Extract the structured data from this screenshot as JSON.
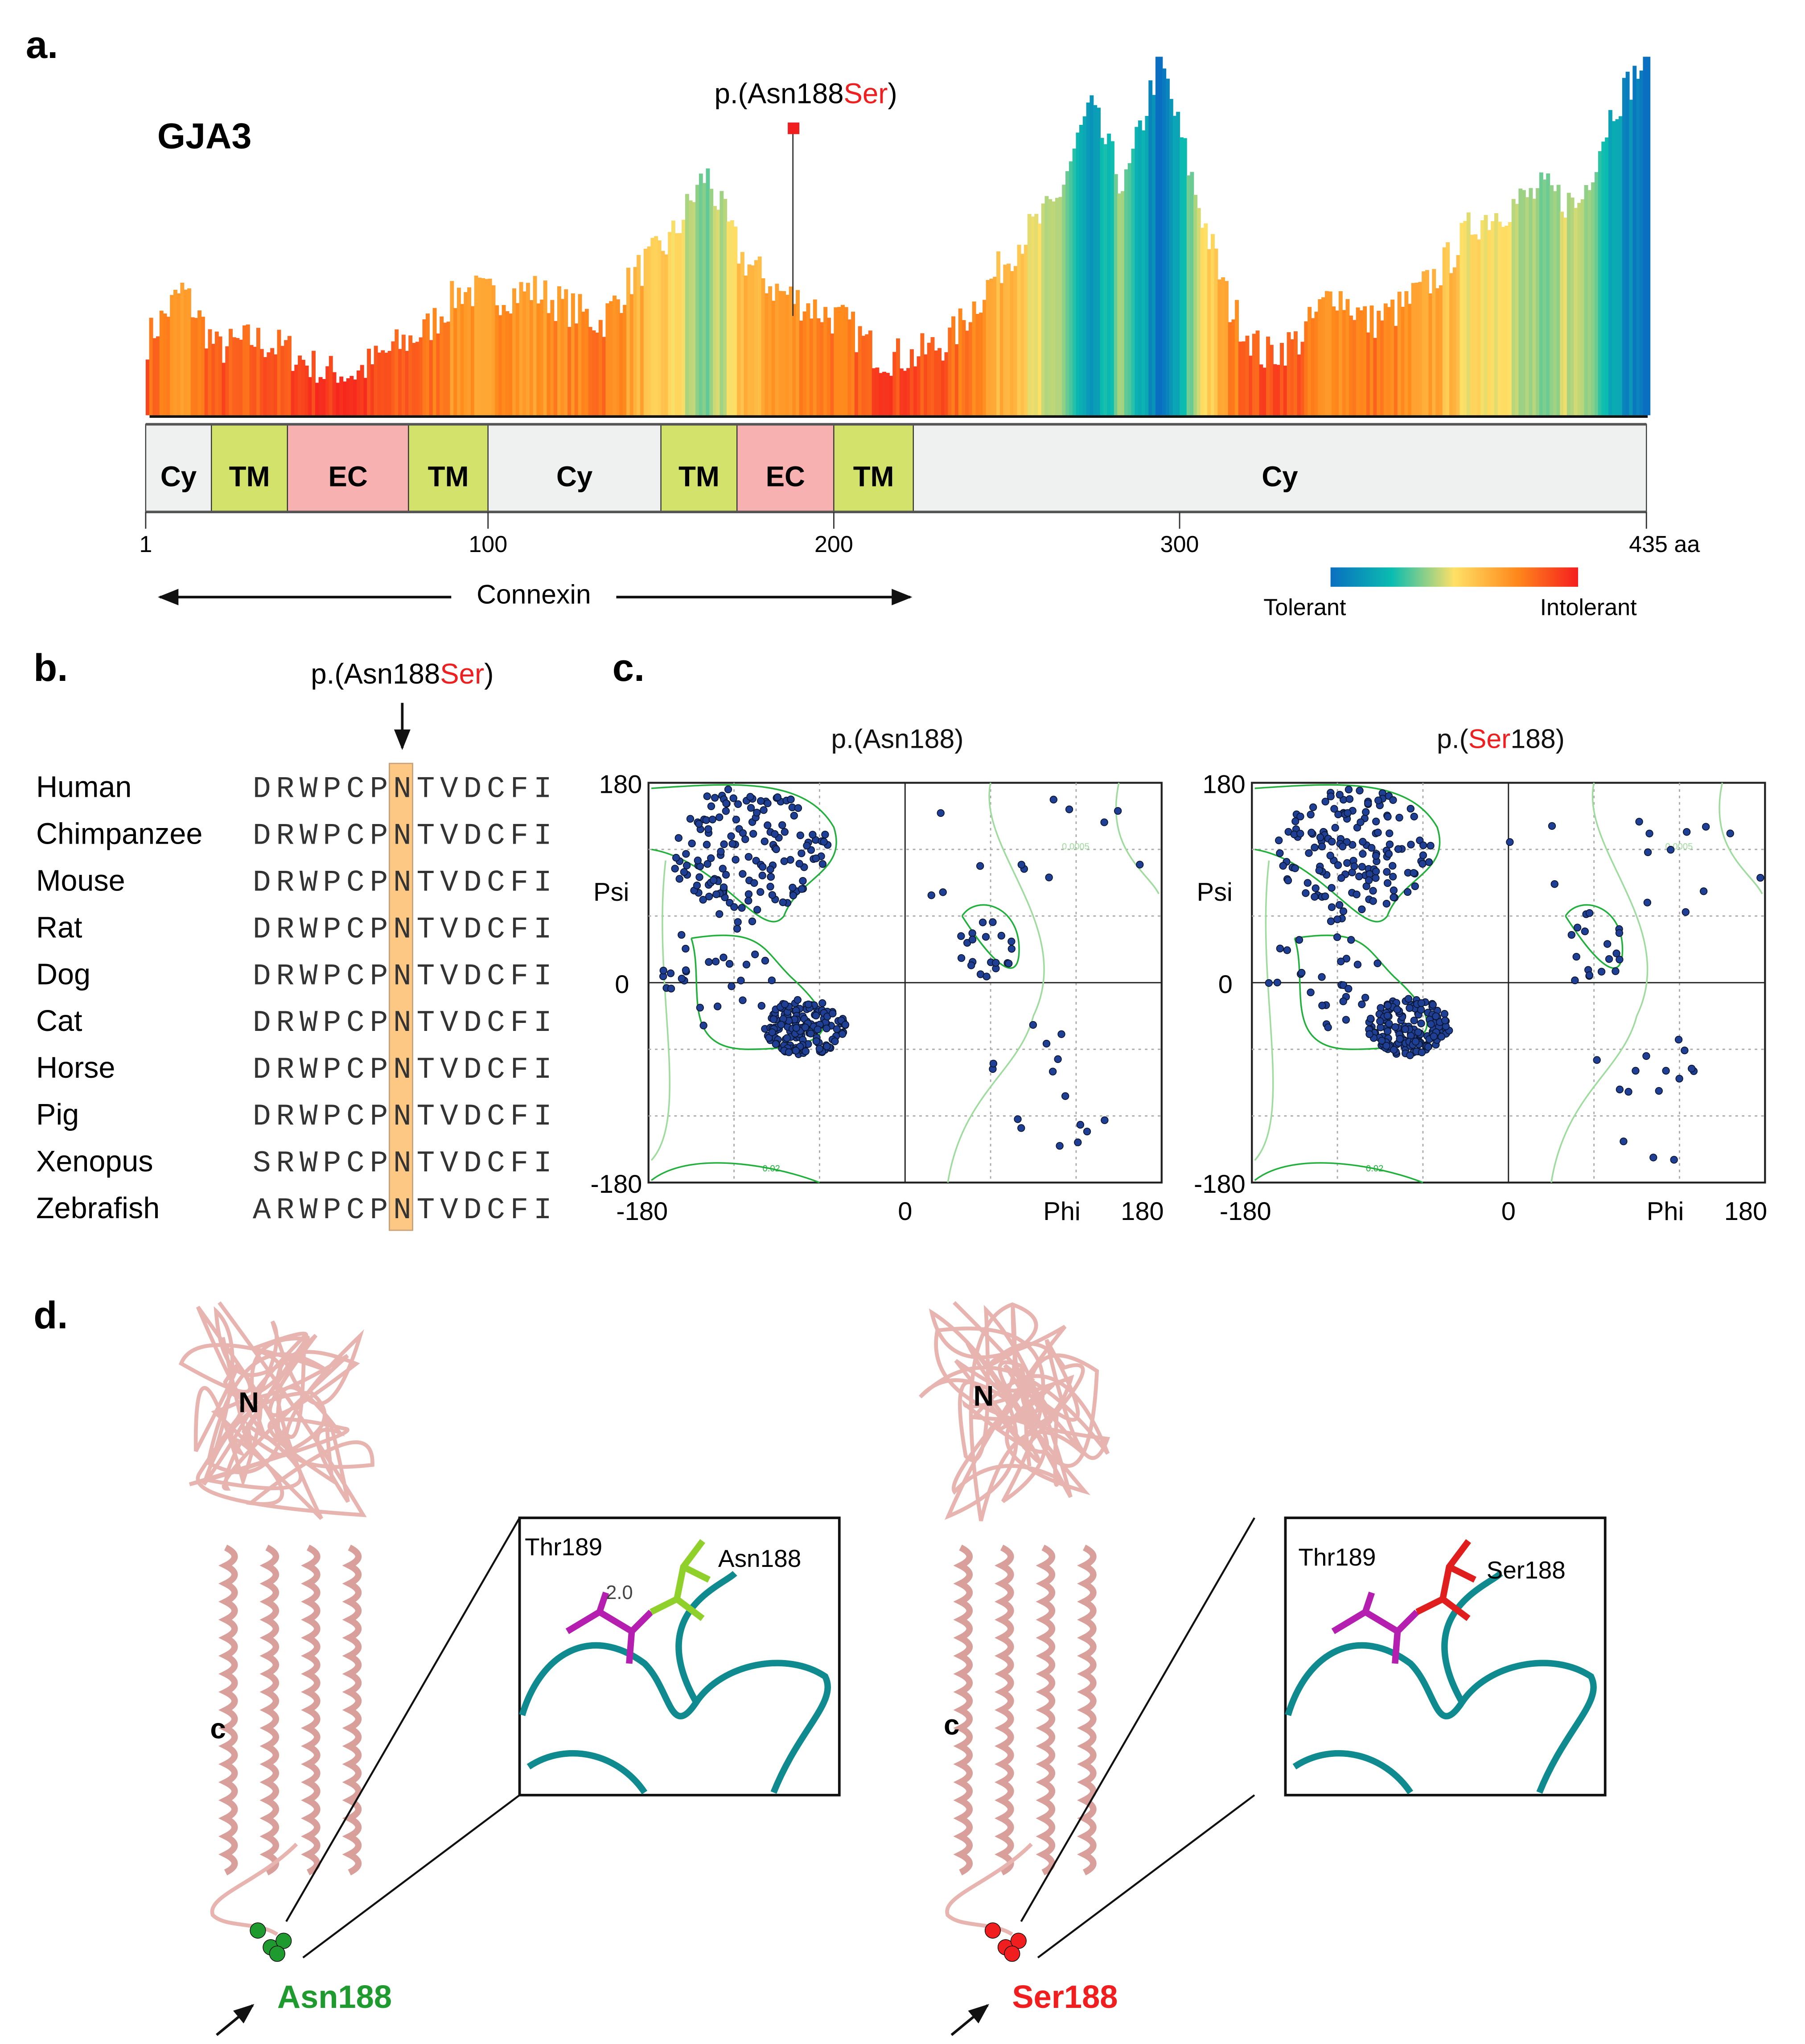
{
  "panel_a": {
    "label": "a.",
    "gene": "GJA3",
    "mutation": {
      "prefix": "p.(Asn188",
      "alt": "Ser",
      "suffix": ")",
      "position": 188
    },
    "protein_length": 435,
    "domains": [
      {
        "name": "Cy",
        "start": 1,
        "end": 20,
        "color": "#eef1f0"
      },
      {
        "name": "TM",
        "start": 20,
        "end": 42,
        "color": "#d2e26a"
      },
      {
        "name": "EC",
        "start": 42,
        "end": 77,
        "color": "#f8b1b1"
      },
      {
        "name": "TM",
        "start": 77,
        "end": 100,
        "color": "#d2e26a"
      },
      {
        "name": "Cy",
        "start": 100,
        "end": 150,
        "color": "#eef1f0"
      },
      {
        "name": "TM",
        "start": 150,
        "end": 172,
        "color": "#d2e26a"
      },
      {
        "name": "EC",
        "start": 172,
        "end": 200,
        "color": "#f8b1b1"
      },
      {
        "name": "TM",
        "start": 200,
        "end": 223,
        "color": "#d2e26a"
      },
      {
        "name": "Cy",
        "start": 223,
        "end": 435,
        "color": "#eef1f0"
      }
    ],
    "ticks": [
      "1",
      "100",
      "200",
      "300",
      "435 aa"
    ],
    "tick_values": [
      1,
      100,
      200,
      300,
      435
    ],
    "region_label": "Connexin",
    "legend": {
      "low": "Tolerant",
      "high": "Intolerant",
      "colors": [
        "#0a6fc0",
        "#0bbdb0",
        "#ffe066",
        "#ff8a1c",
        "#f51e1e"
      ]
    },
    "tolerance_profile": [
      0.15,
      0.3,
      0.12,
      0.15,
      0.12,
      0.05,
      0.05,
      0.12,
      0.18,
      0.3,
      0.28,
      0.3,
      0.25,
      0.2,
      0.35,
      0.45,
      0.65,
      0.4,
      0.3,
      0.25,
      0.2,
      0.1,
      0.1,
      0.15,
      0.3,
      0.45,
      0.55,
      0.85,
      0.6,
      1.0,
      0.6,
      0.25,
      0.1,
      0.15,
      0.3,
      0.2,
      0.25,
      0.35,
      0.5,
      0.55,
      0.6,
      0.55,
      0.85,
      1.0
    ]
  },
  "panel_b": {
    "label": "b.",
    "mutation": {
      "prefix": "p.(Asn188",
      "alt": "Ser",
      "suffix": ")"
    },
    "alignment": [
      {
        "species": "Human",
        "seq": "DRWPCPNTVDCFI"
      },
      {
        "species": "Chimpanzee",
        "seq": "DRWPCPNTVDCFI"
      },
      {
        "species": "Mouse",
        "seq": "DRWPCPNTVDCFI"
      },
      {
        "species": "Rat",
        "seq": "DRWPCPNTVDCFI"
      },
      {
        "species": "Dog",
        "seq": "DRWPCPNTVDCFI"
      },
      {
        "species": "Cat",
        "seq": "DRWPCPNTVDCFI"
      },
      {
        "species": "Horse",
        "seq": "DRWPCPNTVDCFI"
      },
      {
        "species": "Pig",
        "seq": "DRWPCPNTVDCFI"
      },
      {
        "species": "Xenopus",
        "seq": "SRWPCPNTVDCFI"
      },
      {
        "species": "Zebrafish",
        "seq": "ARWPCPNTVDCFI"
      }
    ],
    "highlight_column": 7
  },
  "panel_c": {
    "label": "c.",
    "plots": [
      {
        "title_prefix": "p.(Asn",
        "title_alt": "",
        "title_suffix": "188)"
      },
      {
        "title_prefix": "p.(",
        "title_alt": "Ser",
        "title_suffix": "188)"
      }
    ],
    "xlabel": "Phi",
    "ylabel": "Psi",
    "xticks": [
      "-180",
      "0",
      "180"
    ],
    "yticks": [
      "180",
      "0",
      "-180"
    ],
    "contour_labels": [
      "0.02",
      "0.0005"
    ]
  },
  "panel_d": {
    "label": "d.",
    "left": {
      "n_label": "N",
      "c_label": "c",
      "residue": "Asn188",
      "neighbor": "Thr189",
      "distance": "2.0",
      "color": "#1f9a2e"
    },
    "right": {
      "n_label": "N",
      "c_label": "c",
      "residue": "Ser188",
      "neighbor": "Thr189",
      "color": "#f01e1e"
    }
  }
}
